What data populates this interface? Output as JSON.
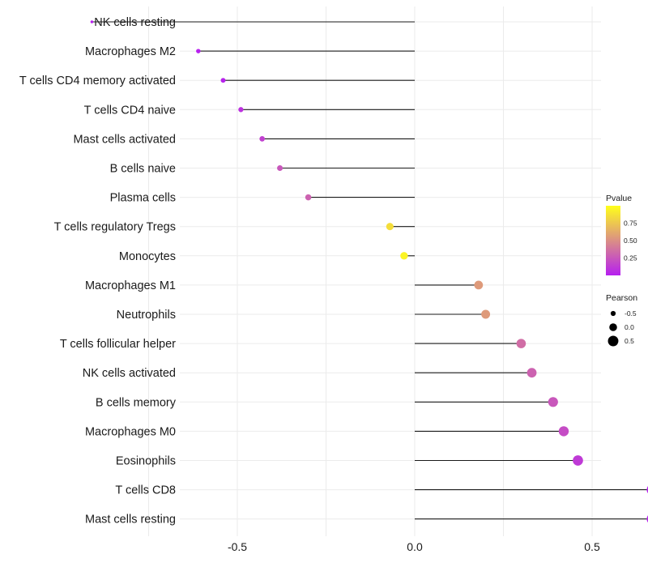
{
  "chart_data": {
    "type": "lollipop",
    "title": "",
    "xlabel": "",
    "ylabel": "",
    "xlim": [
      -0.97,
      0.78
    ],
    "x_ticks": [
      -0.5,
      0.0,
      0.5
    ],
    "x_tick_labels": [
      "-0.5",
      "0.0",
      "0.5"
    ],
    "grid": true,
    "categories": [
      "NK cells resting",
      "Macrophages M2",
      "T cells CD4 memory activated",
      "T cells CD4 naive",
      "Mast cells activated",
      "B cells naive",
      "Plasma cells",
      "T cells regulatory  Tregs",
      "Monocytes",
      "Macrophages M1",
      "Neutrophils",
      "T cells follicular helper",
      "NK cells activated",
      "B cells memory",
      "Macrophages M0",
      "Eosinophils",
      "T cells CD8",
      "Mast cells resting"
    ],
    "pearson": [
      -0.91,
      -0.61,
      -0.54,
      -0.49,
      -0.43,
      -0.38,
      -0.3,
      -0.07,
      -0.03,
      0.18,
      0.2,
      0.3,
      0.33,
      0.39,
      0.42,
      0.46,
      0.67,
      0.67
    ],
    "pvalue": [
      0.01,
      0.01,
      0.02,
      0.08,
      0.15,
      0.25,
      0.3,
      0.85,
      0.95,
      0.55,
      0.55,
      0.35,
      0.3,
      0.25,
      0.2,
      0.12,
      0.02,
      0.02
    ],
    "legend": {
      "placement": "right",
      "color": {
        "title": "Pvalue",
        "low_color": "#b61ff0",
        "high_color": "#ffff1a",
        "range": [
          0.0,
          1.0
        ],
        "ticks": [
          0.25,
          0.5,
          0.75
        ],
        "tick_labels": [
          "0.25",
          "0.50",
          "0.75"
        ]
      },
      "size": {
        "title": "Pearson",
        "values": [
          -0.5,
          0.0,
          0.5
        ],
        "labels": [
          "-0.5",
          "0.0",
          "0.5"
        ]
      }
    }
  }
}
